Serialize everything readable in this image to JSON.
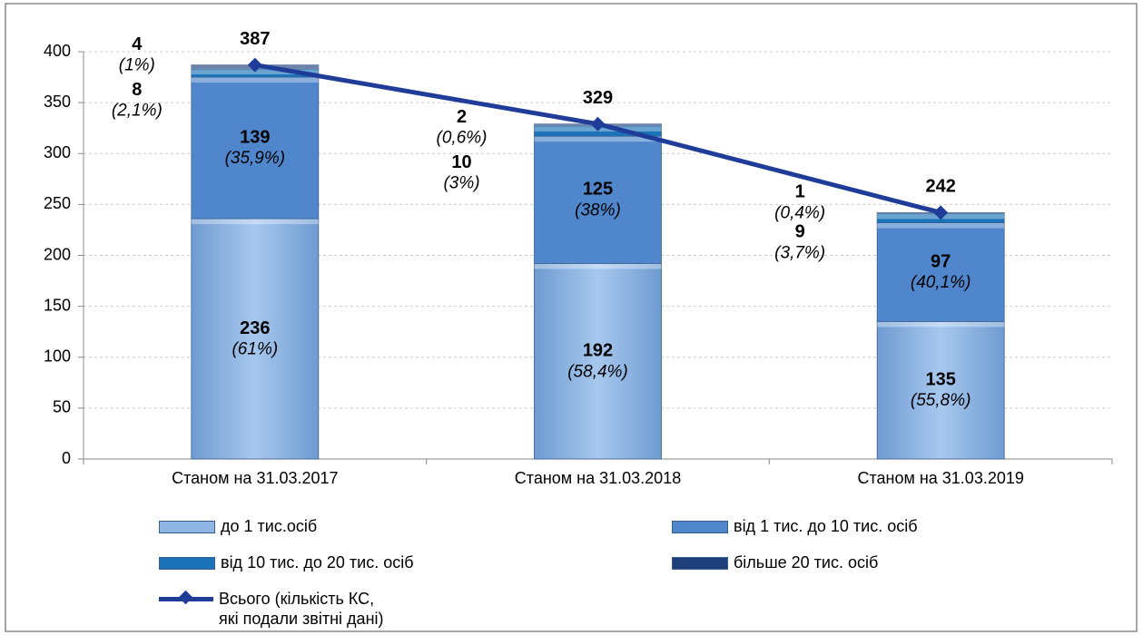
{
  "chart_data": {
    "type": "stacked_bar_line",
    "categories": [
      "Станом на 31.03.2017",
      "Станом на 31.03.2018",
      "Станом на 31.03.2019"
    ],
    "series": [
      {
        "name": "до 1 тис.осіб",
        "color": "#8db4e2",
        "values": [
          236,
          192,
          135
        ],
        "shares": [
          61,
          58.4,
          55.8
        ],
        "share_labels": [
          "(61%)",
          "(58,4%)",
          "(55,8%)"
        ]
      },
      {
        "name": "від 1 тис. до 10 тис. осіб",
        "color": "#4f86cc",
        "values": [
          139,
          125,
          97
        ],
        "shares": [
          35.9,
          38,
          40.1
        ],
        "share_labels": [
          "(35,9%)",
          "(38%)",
          "(40,1%)"
        ]
      },
      {
        "name": "від 10 тис. до 20 тис. осіб",
        "color": "#1a73b8",
        "values": [
          8,
          10,
          9
        ],
        "shares": [
          2.1,
          3,
          3.7
        ],
        "share_labels": [
          "(2,1%)",
          "(3%)",
          "(3,7%)"
        ]
      },
      {
        "name": "більше 20 тис. осіб",
        "color": "#1f3f7a",
        "values": [
          4,
          2,
          1
        ],
        "shares": [
          1,
          0.6,
          0.4
        ],
        "share_labels": [
          "(1%)",
          "(0,6%)",
          "(0,4%)"
        ]
      }
    ],
    "line": {
      "name": "Всього (кількість КС,\nякі подали звітні дані)",
      "color": "#1f3c99",
      "values": [
        387,
        329,
        242
      ]
    },
    "ylim": [
      0,
      400
    ],
    "yticks": [
      0,
      50,
      100,
      150,
      200,
      250,
      300,
      350,
      400
    ],
    "grid": true
  }
}
